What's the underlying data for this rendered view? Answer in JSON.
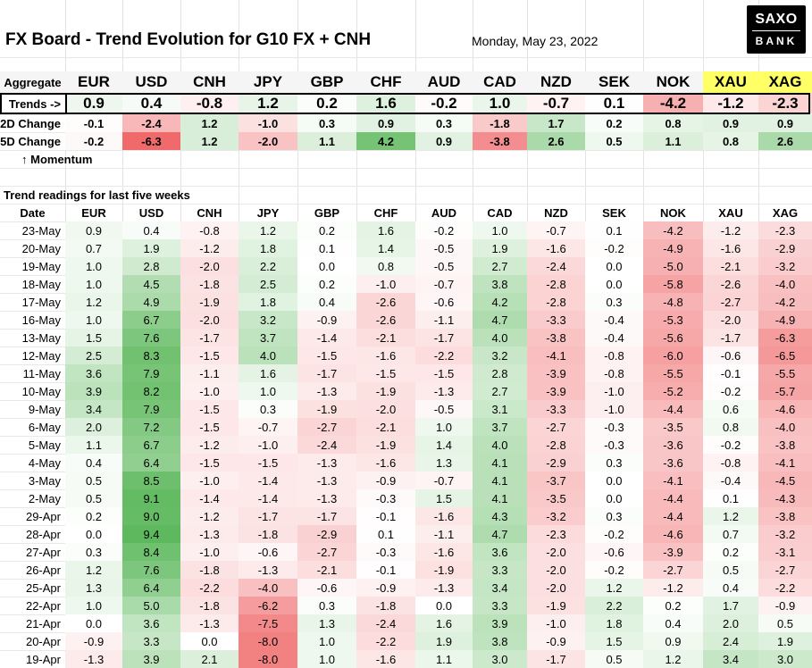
{
  "title": "FX Board - Trend Evolution for G10 FX + CNH",
  "date": "Monday, May 23, 2022",
  "logo": {
    "line1": "SAXO",
    "line2": "BANK"
  },
  "colors": {
    "positive": "#5cb85c",
    "negative": "#f0696b",
    "gold": "#ffff66",
    "header_bg": "#f5f5f5"
  },
  "aggregate_label": "Aggregate",
  "currencies": [
    "EUR",
    "USD",
    "CNH",
    "JPY",
    "GBP",
    "CHF",
    "AUD",
    "CAD",
    "NZD",
    "SEK",
    "NOK",
    "XAU",
    "XAG"
  ],
  "summary_rows": [
    {
      "label": "Trends ->",
      "values": [
        0.9,
        0.4,
        -0.8,
        1.2,
        0.2,
        1.6,
        -0.2,
        1.0,
        -0.7,
        0.1,
        -4.2,
        -1.2,
        -2.3
      ]
    },
    {
      "label": "2D Change",
      "values": [
        -0.1,
        -2.4,
        1.2,
        -1.0,
        0.3,
        0.9,
        0.3,
        -1.8,
        1.7,
        0.2,
        0.8,
        0.9,
        0.9
      ]
    },
    {
      "label": "5D Change",
      "values": [
        -0.2,
        -6.3,
        1.2,
        -2.0,
        1.1,
        4.2,
        0.9,
        -3.8,
        2.6,
        0.5,
        1.1,
        0.8,
        2.6
      ]
    }
  ],
  "momentum_label": "↑ Momentum",
  "section_title": "Trend readings for last five weeks",
  "date_header": "Date",
  "history": [
    {
      "date": "23-May",
      "values": [
        0.9,
        0.4,
        -0.8,
        1.2,
        0.2,
        1.6,
        -0.2,
        1.0,
        -0.7,
        0.1,
        -4.2,
        -1.2,
        -2.3
      ]
    },
    {
      "date": "20-May",
      "values": [
        0.7,
        1.9,
        -1.2,
        1.8,
        0.1,
        1.4,
        -0.5,
        1.9,
        -1.6,
        -0.2,
        -4.9,
        -1.6,
        -2.9
      ]
    },
    {
      "date": "19-May",
      "values": [
        1.0,
        2.8,
        -2.0,
        2.2,
        0.0,
        0.8,
        -0.5,
        2.7,
        -2.4,
        0.0,
        -5.0,
        -2.1,
        -3.2
      ]
    },
    {
      "date": "18-May",
      "values": [
        1.0,
        4.5,
        -1.8,
        2.5,
        0.2,
        -1.0,
        -0.7,
        3.8,
        -2.8,
        0.0,
        -5.8,
        -2.6,
        -4.0
      ]
    },
    {
      "date": "17-May",
      "values": [
        1.2,
        4.9,
        -1.9,
        1.8,
        0.4,
        -2.6,
        -0.6,
        4.2,
        -2.8,
        0.3,
        -4.8,
        -2.7,
        -4.2
      ]
    },
    {
      "date": "16-May",
      "values": [
        1.0,
        6.7,
        -2.0,
        3.2,
        -0.9,
        -2.6,
        -1.1,
        4.7,
        -3.3,
        -0.4,
        -5.3,
        -2.0,
        -4.9
      ]
    },
    {
      "date": "13-May",
      "values": [
        1.5,
        7.6,
        -1.7,
        3.7,
        -1.4,
        -2.1,
        -1.7,
        4.0,
        -3.8,
        -0.4,
        -5.6,
        -1.7,
        -6.3
      ]
    },
    {
      "date": "12-May",
      "values": [
        2.5,
        8.3,
        -1.5,
        4.0,
        -1.5,
        -1.6,
        -2.2,
        3.2,
        -4.1,
        -0.8,
        -6.0,
        -0.6,
        -6.5
      ]
    },
    {
      "date": "11-May",
      "values": [
        3.6,
        7.9,
        -1.1,
        1.6,
        -1.7,
        -1.5,
        -1.5,
        2.8,
        -3.9,
        -0.8,
        -5.5,
        -0.1,
        -5.5
      ]
    },
    {
      "date": "10-May",
      "values": [
        3.9,
        8.2,
        -1.0,
        1.0,
        -1.3,
        -1.9,
        -1.3,
        2.7,
        -3.9,
        -1.0,
        -5.2,
        -0.2,
        -5.7
      ]
    },
    {
      "date": "9-May",
      "values": [
        3.4,
        7.9,
        -1.5,
        0.3,
        -1.9,
        -2.0,
        -0.5,
        3.1,
        -3.3,
        -1.0,
        -4.4,
        0.6,
        -4.6
      ]
    },
    {
      "date": "6-May",
      "values": [
        2.0,
        7.2,
        -1.5,
        -0.7,
        -2.7,
        -2.1,
        1.0,
        3.7,
        -2.7,
        -0.3,
        -3.5,
        0.8,
        -4.0
      ]
    },
    {
      "date": "5-May",
      "values": [
        1.1,
        6.7,
        -1.2,
        -1.0,
        -2.4,
        -1.9,
        1.4,
        4.0,
        -2.8,
        -0.3,
        -3.6,
        -0.2,
        -3.8
      ]
    },
    {
      "date": "4-May",
      "values": [
        0.4,
        6.4,
        -1.5,
        -1.5,
        -1.3,
        -1.6,
        1.3,
        4.1,
        -2.9,
        0.3,
        -3.6,
        -0.8,
        -4.1
      ]
    },
    {
      "date": "3-May",
      "values": [
        0.5,
        8.5,
        -1.0,
        -1.4,
        -1.3,
        -0.9,
        -0.7,
        4.1,
        -3.7,
        0.0,
        -4.1,
        -0.4,
        -4.5
      ]
    },
    {
      "date": "2-May",
      "values": [
        0.5,
        9.1,
        -1.4,
        -1.4,
        -1.3,
        -0.3,
        1.5,
        4.1,
        -3.5,
        0.0,
        -4.4,
        0.1,
        -4.3
      ]
    },
    {
      "date": "29-Apr",
      "values": [
        0.2,
        9.0,
        -1.2,
        -1.7,
        -1.7,
        -0.1,
        -1.6,
        4.3,
        -3.2,
        0.3,
        -4.4,
        1.2,
        -3.8
      ]
    },
    {
      "date": "28-Apr",
      "values": [
        0.0,
        9.4,
        -1.3,
        -1.8,
        -2.9,
        0.1,
        -1.1,
        4.7,
        -2.3,
        -0.2,
        -4.6,
        0.7,
        -3.2
      ]
    },
    {
      "date": "27-Apr",
      "values": [
        0.3,
        8.4,
        -1.0,
        -0.6,
        -2.7,
        -0.3,
        -1.6,
        3.6,
        -2.0,
        -0.6,
        -3.9,
        0.2,
        -3.1
      ]
    },
    {
      "date": "26-Apr",
      "values": [
        1.2,
        7.6,
        -1.8,
        -1.3,
        -2.1,
        -0.1,
        -1.9,
        3.3,
        -2.0,
        -0.2,
        -2.7,
        0.5,
        -2.7
      ]
    },
    {
      "date": "25-Apr",
      "values": [
        1.3,
        6.4,
        -2.2,
        -4.0,
        -0.6,
        -0.9,
        -1.3,
        3.4,
        -2.0,
        1.2,
        -1.2,
        0.4,
        -2.2
      ]
    },
    {
      "date": "22-Apr",
      "values": [
        1.0,
        5.0,
        -1.8,
        -6.2,
        0.3,
        -1.8,
        0.0,
        3.3,
        -1.9,
        2.2,
        0.2,
        1.7,
        -0.9
      ]
    },
    {
      "date": "21-Apr",
      "values": [
        0.0,
        3.6,
        -1.3,
        -7.5,
        1.3,
        -2.4,
        1.6,
        3.9,
        -1.0,
        1.8,
        0.4,
        2.0,
        0.5
      ]
    },
    {
      "date": "20-Apr",
      "values": [
        -0.9,
        3.3,
        0.0,
        -8.0,
        1.0,
        -2.2,
        1.9,
        3.8,
        -0.9,
        1.5,
        0.9,
        2.4,
        1.9
      ]
    },
    {
      "date": "19-Apr",
      "values": [
        -1.3,
        3.9,
        2.1,
        -8.0,
        1.0,
        -1.6,
        1.1,
        3.0,
        -1.7,
        0.5,
        1.2,
        3.4,
        3.0
      ]
    }
  ]
}
